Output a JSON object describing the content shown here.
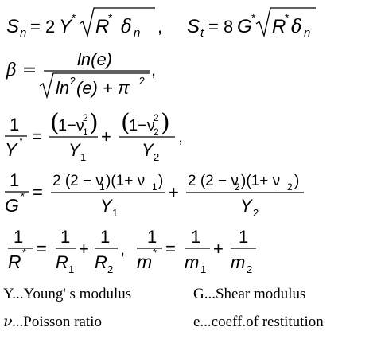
{
  "equations": {
    "sn": {
      "lhs_main": "S",
      "lhs_sub": "n",
      "coef": "= 2",
      "Y": "Y",
      "star": "*",
      "R": "R",
      "delta": "δ",
      "delta_sub": "n",
      "trail": ","
    },
    "st": {
      "lhs_main": "S",
      "lhs_sub": "t",
      "coef": "= 8",
      "G": "G",
      "star": "*",
      "R": "R",
      "delta": "δ",
      "delta_sub": "n"
    },
    "beta": {
      "lhs": "β =",
      "num": "ln(e)",
      "den_ln": "ln",
      "den_exp": "2",
      "den_arg": "(e) + π",
      "den_pi_exp": "2",
      "trail": ","
    },
    "y_star": {
      "num_one": "1",
      "den": "Y",
      "den_star": "*",
      "eq": "=",
      "t1_num": "1−ν",
      "t1_sub": "1",
      "t1_exp": "2",
      "t1_den": "Y",
      "t1_den_sub": "1",
      "plus": "+",
      "t2_num": "1−ν",
      "t2_sub": "2",
      "t2_exp": "2",
      "t2_den": "Y",
      "t2_den_sub": "2",
      "trail": ","
    },
    "g_star": {
      "num_one": "1",
      "den": "G",
      "den_star": "*",
      "eq": "=",
      "t1_num": "2 (2 − ν",
      "t1_sub": "1",
      "t1_mid": ")(1+ ν",
      "t1_sub2": "1",
      "t1_close": ")",
      "t1_den": "Y",
      "t1_den_sub": "1",
      "plus": "+",
      "t2_num": "2 (2 − ν",
      "t2_sub": "2",
      "t2_mid": ")(1+ ν",
      "t2_sub2": "2",
      "t2_close": ")",
      "t2_den": "Y",
      "t2_den_sub": "2"
    },
    "r_star": {
      "one": "1",
      "R": "R",
      "star": "*",
      "eq": "=",
      "R1": "R",
      "R1_sub": "1",
      "plus": "+",
      "R2": "R",
      "R2_sub": "2",
      "comma": ","
    },
    "m_star": {
      "one": "1",
      "m": "m",
      "star": "*",
      "eq": "=",
      "m1": "m",
      "m1_sub": "1",
      "plus": "+",
      "m2": "m",
      "m2_sub": "2"
    }
  },
  "legend": {
    "young": "Y...Young' s modulus",
    "shear": "G...Shear modulus",
    "nu_symbol": "ν",
    "poisson": "...Poisson ratio",
    "restitution": "e...coeff.of restitution"
  }
}
